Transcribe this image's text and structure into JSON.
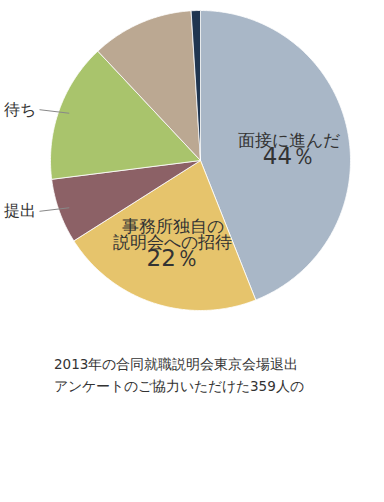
{
  "chart_data": {
    "type": "pie",
    "categories": [
      "面接に進んだ",
      "事務所独自の\n説明会への招待",
      "提出",
      "待ち",
      null,
      null
    ],
    "values": [
      44,
      22,
      7,
      15,
      11,
      1
    ],
    "colors": [
      "#a9b7c7",
      "#e6c46c",
      "#8c6166",
      "#a9c46c",
      "#bba892",
      "#1f3550"
    ],
    "data_labels": true,
    "value_labels": [
      "44％",
      "22％",
      null,
      null,
      null,
      null
    ],
    "caption": "2013年の合同就職説明会東京会場退出\nアンケートのご協力いただけた359人の"
  }
}
